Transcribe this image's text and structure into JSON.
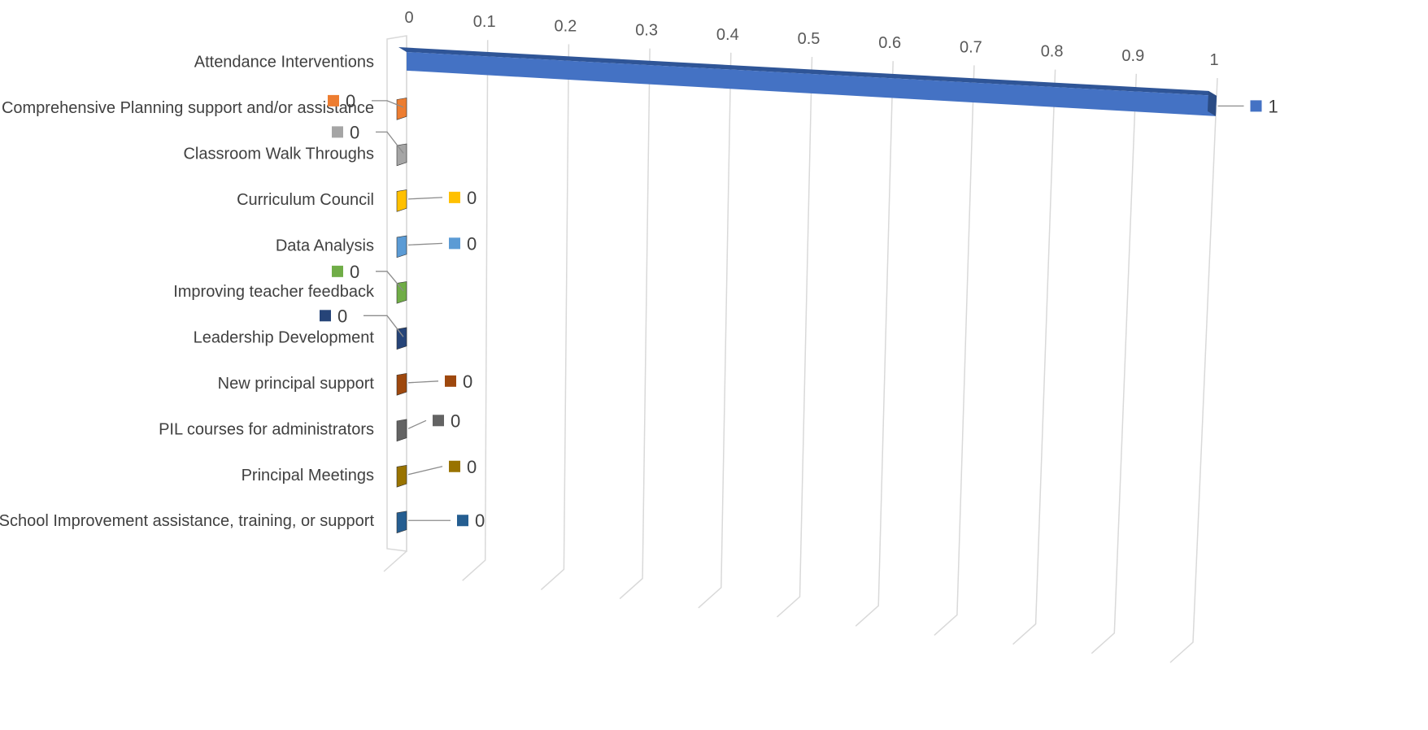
{
  "chart_data": {
    "type": "bar",
    "orientation": "horizontal",
    "three_d": true,
    "title": "",
    "xlabel": "",
    "ylabel": "",
    "xlim": [
      0,
      1
    ],
    "x_ticks": [
      "0",
      "0.1",
      "0.2",
      "0.3",
      "0.4",
      "0.5",
      "0.6",
      "0.7",
      "0.8",
      "0.9",
      "1"
    ],
    "grid": true,
    "legend": "none",
    "categories": [
      "Attendance Interventions",
      "Comprehensive Planning support and/or assistance",
      "Classroom Walk Throughs",
      "Curriculum Council",
      "Data Analysis",
      "Improving teacher feedback",
      "Leadership Development",
      "New principal support",
      "PIL courses for administrators",
      "Principal Meetings",
      "School Improvement assistance, training, or support"
    ],
    "values": [
      1,
      0,
      0,
      0,
      0,
      0,
      0,
      0,
      0,
      0,
      0
    ],
    "data_labels": [
      "1",
      "0",
      "0",
      "0",
      "0",
      "0",
      "0",
      "0",
      "0",
      "0",
      "0"
    ],
    "colors": [
      "#4472C4",
      "#ED7D31",
      "#A5A5A5",
      "#FFC000",
      "#5B9BD5",
      "#70AD47",
      "#264478",
      "#9E480E",
      "#636363",
      "#997300",
      "#255E91"
    ]
  }
}
